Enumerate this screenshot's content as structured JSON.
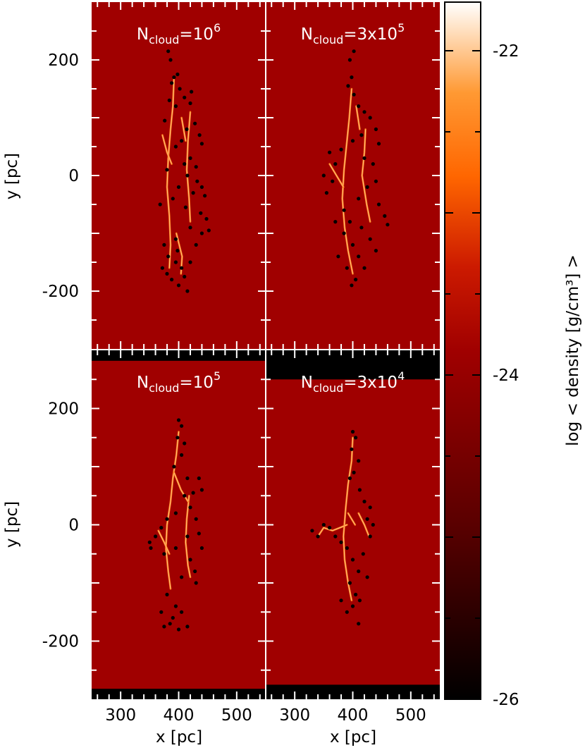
{
  "chart_data": {
    "type": "heatmap",
    "x_axis": {
      "label": "x [pc]",
      "range": [
        250,
        550
      ],
      "ticks": [
        300,
        400,
        500
      ],
      "tick_labels": [
        "300",
        "400",
        "500"
      ]
    },
    "y_axis": {
      "label": "y [pc]",
      "range": [
        -300,
        300
      ],
      "ticks": [
        -200,
        0,
        200
      ],
      "tick_labels": [
        "-200",
        "0",
        "200"
      ]
    },
    "colorbar": {
      "label": "log < density [g/cm³] >",
      "range": [
        -26,
        -21.7
      ],
      "ticks": [
        -26,
        -24,
        -22
      ],
      "tick_labels": [
        "-26",
        "-24",
        "-22"
      ],
      "colors": [
        "#000000",
        "#5a0000",
        "#a00000",
        "#cc1a00",
        "#ff6600",
        "#ff9933",
        "#ffffff"
      ]
    },
    "panels": [
      {
        "title_main": "N",
        "title_sub": "cloud",
        "title_eq": "=10",
        "title_sup": "6",
        "y_extent": [
          -300,
          300
        ],
        "filaments": [
          [
            [
              392,
              170
            ],
            [
              390,
              120
            ],
            [
              386,
              80
            ],
            [
              382,
              30
            ],
            [
              380,
              -20
            ],
            [
              384,
              -70
            ],
            [
              386,
              -120
            ],
            [
              384,
              -160
            ]
          ],
          [
            [
              420,
              110
            ],
            [
              416,
              60
            ],
            [
              414,
              10
            ],
            [
              418,
              -40
            ],
            [
              420,
              -80
            ]
          ],
          [
            [
              396,
              -100
            ],
            [
              406,
              -140
            ],
            [
              404,
              -170
            ]
          ],
          [
            [
              372,
              70
            ],
            [
              380,
              40
            ],
            [
              388,
              20
            ]
          ],
          [
            [
              405,
              100
            ],
            [
              412,
              60
            ]
          ]
        ],
        "sinks": [
          [
            392,
            170
          ],
          [
            398,
            175
          ],
          [
            388,
            160
          ],
          [
            402,
            150
          ],
          [
            395,
            120
          ],
          [
            384,
            130
          ],
          [
            410,
            135
          ],
          [
            420,
            125
          ],
          [
            428,
            90
          ],
          [
            436,
            70
          ],
          [
            414,
            80
          ],
          [
            405,
            60
          ],
          [
            440,
            55
          ],
          [
            395,
            50
          ],
          [
            420,
            30
          ],
          [
            410,
            20
          ],
          [
            430,
            15
          ],
          [
            380,
            10
          ],
          [
            415,
            0
          ],
          [
            432,
            -10
          ],
          [
            400,
            -20
          ],
          [
            425,
            -30
          ],
          [
            445,
            -35
          ],
          [
            390,
            -40
          ],
          [
            412,
            -55
          ],
          [
            438,
            -65
          ],
          [
            448,
            -75
          ],
          [
            420,
            -90
          ],
          [
            440,
            -100
          ],
          [
            395,
            -110
          ],
          [
            430,
            -120
          ],
          [
            382,
            -140
          ],
          [
            395,
            -150
          ],
          [
            405,
            -160
          ],
          [
            380,
            -170
          ],
          [
            388,
            -180
          ],
          [
            400,
            -190
          ],
          [
            410,
            -175
          ],
          [
            420,
            -150
          ],
          [
            375,
            -120
          ],
          [
            398,
            -130
          ],
          [
            372,
            -160
          ],
          [
            386,
            200
          ],
          [
            382,
            215
          ],
          [
            422,
            145
          ],
          [
            415,
            -200
          ],
          [
            440,
            -20
          ],
          [
            452,
            -95
          ],
          [
            376,
            95
          ],
          [
            368,
            -50
          ]
        ]
      },
      {
        "title_main": "N",
        "title_sub": "cloud",
        "title_eq": "=3x10",
        "title_sup": "5",
        "y_extent": [
          -300,
          300
        ],
        "filaments": [
          [
            [
              398,
              150
            ],
            [
              394,
              100
            ],
            [
              390,
              60
            ],
            [
              385,
              10
            ],
            [
              382,
              -40
            ],
            [
              386,
              -90
            ],
            [
              392,
              -130
            ],
            [
              400,
              -170
            ]
          ],
          [
            [
              422,
              80
            ],
            [
              420,
              40
            ],
            [
              416,
              0
            ],
            [
              424,
              -50
            ],
            [
              430,
              -80
            ]
          ],
          [
            [
              360,
              20
            ],
            [
              372,
              0
            ],
            [
              384,
              -20
            ]
          ],
          [
            [
              406,
              120
            ],
            [
              412,
              80
            ]
          ]
        ],
        "sinks": [
          [
            398,
            170
          ],
          [
            392,
            155
          ],
          [
            402,
            140
          ],
          [
            410,
            120
          ],
          [
            420,
            110
          ],
          [
            430,
            100
          ],
          [
            440,
            80
          ],
          [
            415,
            70
          ],
          [
            400,
            60
          ],
          [
            445,
            55
          ],
          [
            380,
            45
          ],
          [
            360,
            40
          ],
          [
            370,
            20
          ],
          [
            350,
            0
          ],
          [
            365,
            -10
          ],
          [
            420,
            30
          ],
          [
            435,
            20
          ],
          [
            440,
            -10
          ],
          [
            425,
            -20
          ],
          [
            410,
            -40
          ],
          [
            445,
            -50
          ],
          [
            455,
            -70
          ],
          [
            385,
            -60
          ],
          [
            395,
            -80
          ],
          [
            415,
            -90
          ],
          [
            430,
            -110
          ],
          [
            400,
            -120
          ],
          [
            410,
            -140
          ],
          [
            420,
            -160
          ],
          [
            390,
            -160
          ],
          [
            405,
            -180
          ],
          [
            398,
            -190
          ],
          [
            385,
            -100
          ],
          [
            370,
            -80
          ],
          [
            460,
            -85
          ],
          [
            395,
            200
          ],
          [
            402,
            215
          ],
          [
            440,
            -130
          ],
          [
            355,
            -30
          ],
          [
            375,
            -140
          ]
        ]
      },
      {
        "title_main": "N",
        "title_sub": "cloud",
        "title_eq": "=10",
        "title_sup": "5",
        "y_extent": [
          -282,
          282
        ],
        "filaments": [
          [
            [
              400,
              160
            ],
            [
              396,
              120
            ],
            [
              390,
              80
            ],
            [
              386,
              40
            ],
            [
              380,
              0
            ],
            [
              378,
              -40
            ],
            [
              382,
              -80
            ],
            [
              386,
              -110
            ]
          ],
          [
            [
              418,
              50
            ],
            [
              414,
              10
            ],
            [
              412,
              -30
            ],
            [
              416,
              -70
            ],
            [
              420,
              -90
            ]
          ],
          [
            [
              365,
              -10
            ],
            [
              375,
              -30
            ],
            [
              384,
              -50
            ]
          ],
          [
            [
              392,
              90
            ],
            [
              404,
              60
            ],
            [
              416,
              40
            ]
          ]
        ],
        "sinks": [
          [
            400,
            180
          ],
          [
            405,
            170
          ],
          [
            398,
            150
          ],
          [
            410,
            140
          ],
          [
            405,
            120
          ],
          [
            392,
            100
          ],
          [
            415,
            80
          ],
          [
            435,
            80
          ],
          [
            440,
            60
          ],
          [
            425,
            55
          ],
          [
            410,
            50
          ],
          [
            420,
            30
          ],
          [
            430,
            10
          ],
          [
            395,
            20
          ],
          [
            380,
            10
          ],
          [
            370,
            -5
          ],
          [
            360,
            -20
          ],
          [
            352,
            -40
          ],
          [
            375,
            -50
          ],
          [
            395,
            -40
          ],
          [
            415,
            -20
          ],
          [
            435,
            -15
          ],
          [
            440,
            -40
          ],
          [
            420,
            -60
          ],
          [
            428,
            -80
          ],
          [
            405,
            -90
          ],
          [
            380,
            -120
          ],
          [
            395,
            -140
          ],
          [
            405,
            -150
          ],
          [
            390,
            -160
          ],
          [
            370,
            -150
          ],
          [
            385,
            -170
          ],
          [
            400,
            -180
          ],
          [
            375,
            -175
          ],
          [
            415,
            -175
          ],
          [
            350,
            -30
          ],
          [
            430,
            -100
          ]
        ]
      },
      {
        "title_main": "N",
        "title_sub": "cloud",
        "title_eq": "=3x10",
        "title_sup": "4",
        "y_extent": [
          -275,
          250
        ],
        "filaments": [
          [
            [
              400,
              150
            ],
            [
              398,
              110
            ],
            [
              392,
              70
            ],
            [
              388,
              30
            ],
            [
              384,
              -20
            ],
            [
              386,
              -60
            ],
            [
              392,
              -100
            ],
            [
              398,
              -130
            ]
          ],
          [
            [
              340,
              -20
            ],
            [
              350,
              -5
            ],
            [
              365,
              -10
            ],
            [
              378,
              -5
            ],
            [
              390,
              0
            ]
          ],
          [
            [
              410,
              20
            ],
            [
              420,
              0
            ],
            [
              428,
              -20
            ]
          ],
          [
            [
              392,
              20
            ],
            [
              404,
              0
            ]
          ]
        ],
        "sinks": [
          [
            400,
            160
          ],
          [
            405,
            150
          ],
          [
            398,
            130
          ],
          [
            410,
            110
          ],
          [
            402,
            90
          ],
          [
            395,
            80
          ],
          [
            412,
            60
          ],
          [
            420,
            40
          ],
          [
            430,
            30
          ],
          [
            425,
            10
          ],
          [
            435,
            0
          ],
          [
            430,
            -20
          ],
          [
            340,
            -20
          ],
          [
            330,
            -10
          ],
          [
            350,
            0
          ],
          [
            360,
            -5
          ],
          [
            370,
            -20
          ],
          [
            380,
            -30
          ],
          [
            390,
            -40
          ],
          [
            400,
            -60
          ],
          [
            410,
            -80
          ],
          [
            395,
            -100
          ],
          [
            405,
            -120
          ],
          [
            412,
            -130
          ],
          [
            400,
            -140
          ],
          [
            390,
            -150
          ],
          [
            410,
            -170
          ],
          [
            380,
            -130
          ],
          [
            425,
            -90
          ],
          [
            418,
            -50
          ]
        ]
      }
    ]
  }
}
